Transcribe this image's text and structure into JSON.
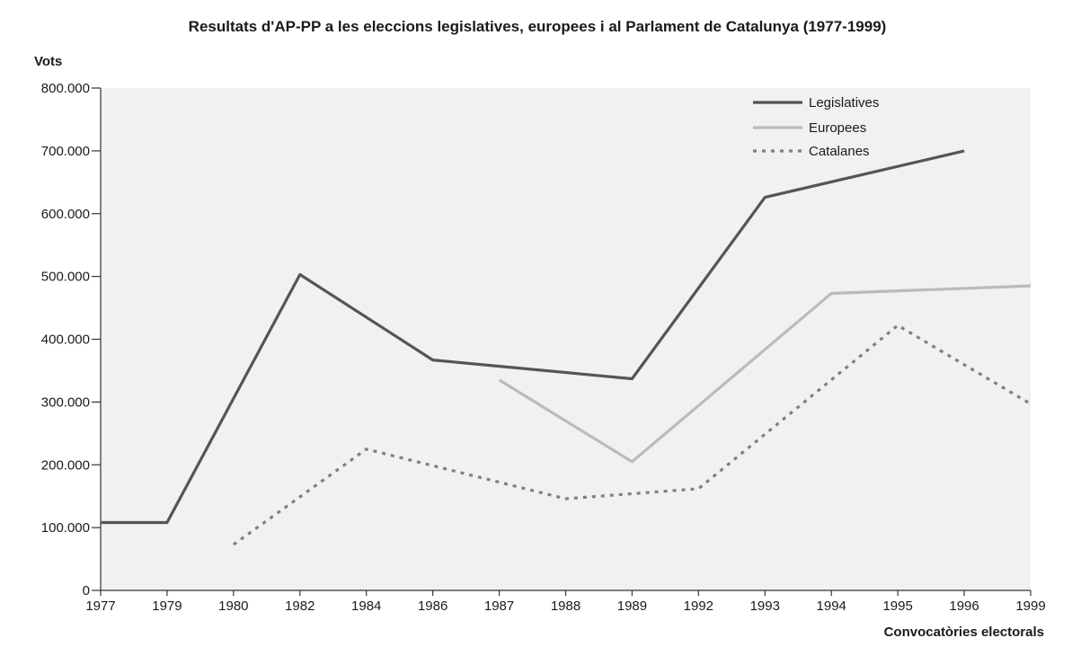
{
  "chart_data": {
    "type": "line",
    "title": "Resultats d'AP-PP a les eleccions legislatives, europees i al Parlament de Catalunya (1977-1999)",
    "ylabel": "Vots",
    "xlabel": "Convocatòries electorals",
    "categories": [
      "1977",
      "1979",
      "1980",
      "1982",
      "1984",
      "1986",
      "1987",
      "1988",
      "1989",
      "1992",
      "1993",
      "1994",
      "1995",
      "1996",
      "1999"
    ],
    "y_ticks": [
      "0",
      "100.000",
      "200.000",
      "300.000",
      "400.000",
      "500.000",
      "600.000",
      "700.000",
      "800.000"
    ],
    "ylim": [
      0,
      800000
    ],
    "legend_position": "top-right",
    "grid": false,
    "series": [
      {
        "name": "Legislatives",
        "color": "#555555",
        "style": "solid",
        "points": [
          [
            "1977",
            108000
          ],
          [
            "1979",
            108000
          ],
          [
            "1982",
            503000
          ],
          [
            "1986",
            367000
          ],
          [
            "1989",
            337000
          ],
          [
            "1993",
            626000
          ],
          [
            "1996",
            700000
          ]
        ]
      },
      {
        "name": "Europees",
        "color": "#bbbbbb",
        "style": "solid",
        "points": [
          [
            "1987",
            335000
          ],
          [
            "1989",
            205000
          ],
          [
            "1994",
            473000
          ],
          [
            "1999",
            485000
          ]
        ]
      },
      {
        "name": "Catalanes",
        "color": "#808080",
        "style": "dotted",
        "points": [
          [
            "1980",
            73000
          ],
          [
            "1984",
            225000
          ],
          [
            "1988",
            146000
          ],
          [
            "1992",
            162000
          ],
          [
            "1995",
            422000
          ],
          [
            "1999",
            297000
          ]
        ]
      }
    ]
  }
}
